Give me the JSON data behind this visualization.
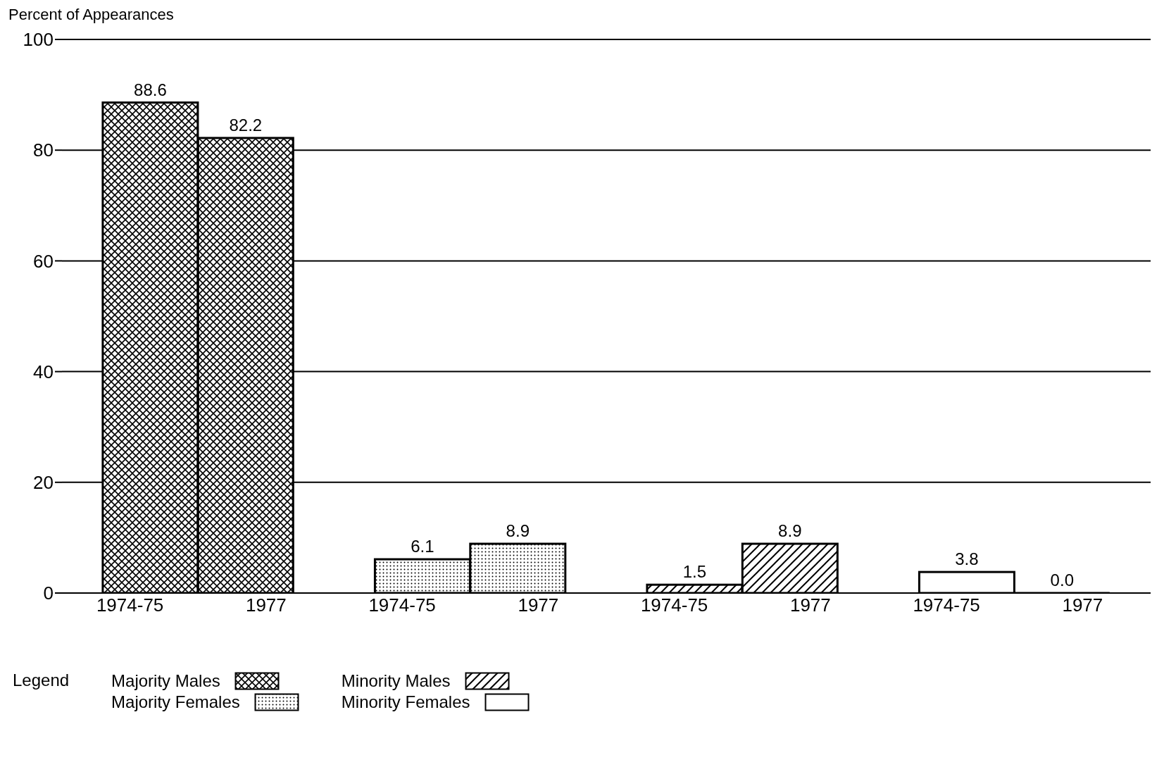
{
  "chart_data": {
    "type": "bar",
    "ylabel": "Percent of Appearances",
    "legend_title": "Legend",
    "categories": [
      "1974-75",
      "1977",
      "1974-75",
      "1977",
      "1974-75",
      "1977",
      "1974-75",
      "1977"
    ],
    "series": [
      {
        "name": "Majority Males",
        "color": "#000000",
        "values": [
          88.6,
          82.2,
          null,
          null,
          null,
          null,
          null,
          null
        ],
        "value_labels": [
          "88.6",
          "82.2",
          null,
          null,
          null,
          null,
          null,
          null
        ]
      },
      {
        "name": "Majority Females",
        "color": "#000000",
        "values": [
          null,
          null,
          6.1,
          8.9,
          null,
          null,
          null,
          null
        ],
        "value_labels": [
          null,
          null,
          "6.1",
          "8.9",
          null,
          null,
          null,
          null
        ]
      },
      {
        "name": "Minority Males",
        "color": "#000000",
        "values": [
          null,
          null,
          null,
          null,
          1.5,
          8.9,
          null,
          null
        ],
        "value_labels": [
          null,
          null,
          null,
          null,
          "1.5",
          "8.9",
          null,
          null
        ]
      },
      {
        "name": "Minority Females",
        "color": "#000000",
        "values": [
          null,
          null,
          null,
          null,
          null,
          null,
          3.8,
          0.0
        ],
        "value_labels": [
          null,
          null,
          null,
          null,
          null,
          null,
          "3.8",
          "0.0"
        ]
      }
    ],
    "ylim": [
      0,
      100
    ],
    "yticks": [
      0,
      20,
      40,
      60,
      80,
      100
    ],
    "grid": "y",
    "legend": "bottom left"
  }
}
